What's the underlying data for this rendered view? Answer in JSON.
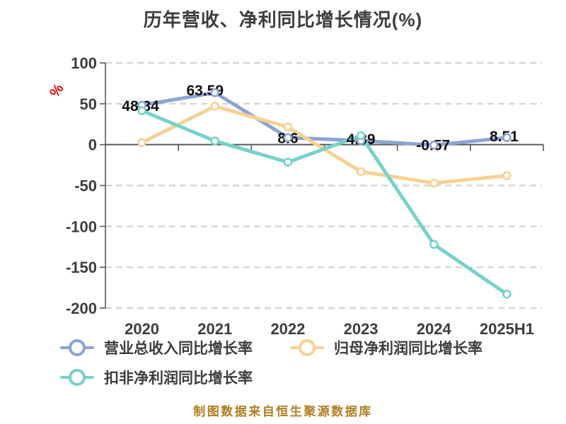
{
  "chart_data": {
    "type": "line",
    "title": "历年营收、净利同比增长情况(%)",
    "ylabel": "%",
    "xlabel": "",
    "categories": [
      "2020",
      "2021",
      "2022",
      "2023",
      "2024",
      "2025H1"
    ],
    "series": [
      {
        "name": "营业总收入同比增长率",
        "color": "#8BA4D3",
        "values": [
          48.34,
          63.59,
          8.6,
          4.89,
          -0.57,
          8.51
        ],
        "point_labels": [
          "48.34",
          "63.59",
          "8.6",
          "4.89",
          "-0.57",
          "8.51"
        ]
      },
      {
        "name": "归母净利润同比增长率",
        "color": "#F7D193",
        "values": [
          2.5,
          47,
          21.5,
          -33,
          -47,
          -38
        ]
      },
      {
        "name": "扣非净利润同比增长率",
        "color": "#77D2CB",
        "values": [
          41.5,
          4.5,
          -21.5,
          11,
          -122,
          -183
        ]
      }
    ],
    "ylim": [
      -200,
      100
    ],
    "yticks": [
      100,
      50,
      0,
      -50,
      -100,
      -150,
      -200
    ],
    "grid": "horizontal-dashed",
    "legend_position": "bottom-left",
    "axis_color": "#595959",
    "grid_color": "#D6D6D6",
    "tick_text_color": "#3D3D3D",
    "data_label_color": "#111111",
    "unit_label_color": "#E60000"
  },
  "footer": {
    "text": "制图数据来自恒生聚源数据库",
    "color": "#AE7D1E"
  }
}
